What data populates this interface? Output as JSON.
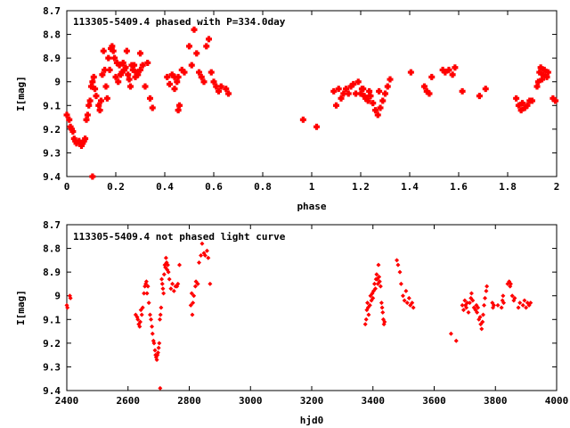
{
  "chart_data": [
    {
      "type": "scatter",
      "title": "113305-5409.4 phased with P=334.0day",
      "xlabel": "phase",
      "ylabel": "I[mag]",
      "xlim": [
        0,
        2
      ],
      "ylim": [
        9.4,
        8.7
      ],
      "y_inverted": true,
      "grid": false,
      "marker": "filled-plus",
      "color": "#ff0000",
      "xticks": [
        "0",
        "0.2",
        "0.4",
        "0.6",
        "0.8",
        "1",
        "1.2",
        "1.4",
        "1.6",
        "1.8",
        "2"
      ],
      "yticks": [
        "8.7",
        "8.8",
        "8.9",
        "9",
        "9.1",
        "9.2",
        "9.3",
        "9.4"
      ],
      "points": [
        [
          0.0,
          9.14
        ],
        [
          0.01,
          9.16
        ],
        [
          0.015,
          9.19
        ],
        [
          0.02,
          9.2
        ],
        [
          0.025,
          9.21
        ],
        [
          0.03,
          9.24
        ],
        [
          0.035,
          9.25
        ],
        [
          0.04,
          9.26
        ],
        [
          0.05,
          9.25
        ],
        [
          0.055,
          9.26
        ],
        [
          0.06,
          9.27
        ],
        [
          0.065,
          9.26
        ],
        [
          0.07,
          9.25
        ],
        [
          0.075,
          9.24
        ],
        [
          0.08,
          9.16
        ],
        [
          0.085,
          9.14
        ],
        [
          0.09,
          9.1
        ],
        [
          0.095,
          9.08
        ],
        [
          0.1,
          9.02
        ],
        [
          0.105,
          9.0
        ],
        [
          0.11,
          8.98
        ],
        [
          0.115,
          9.03
        ],
        [
          0.12,
          9.06
        ],
        [
          0.13,
          9.1
        ],
        [
          0.135,
          9.12
        ],
        [
          0.14,
          9.08
        ],
        [
          0.145,
          8.97
        ],
        [
          0.15,
          8.87
        ],
        [
          0.155,
          8.95
        ],
        [
          0.16,
          9.02
        ],
        [
          0.165,
          9.07
        ],
        [
          0.17,
          8.9
        ],
        [
          0.175,
          8.95
        ],
        [
          0.18,
          8.86
        ],
        [
          0.185,
          8.85
        ],
        [
          0.19,
          8.87
        ],
        [
          0.195,
          8.9
        ],
        [
          0.2,
          8.98
        ],
        [
          0.205,
          8.92
        ],
        [
          0.21,
          9.0
        ],
        [
          0.215,
          8.93
        ],
        [
          0.22,
          8.97
        ],
        [
          0.225,
          8.96
        ],
        [
          0.23,
          8.92
        ],
        [
          0.235,
          8.95
        ],
        [
          0.24,
          8.94
        ],
        [
          0.245,
          8.87
        ],
        [
          0.25,
          8.97
        ],
        [
          0.255,
          8.99
        ],
        [
          0.26,
          9.02
        ],
        [
          0.265,
          8.93
        ],
        [
          0.27,
          8.95
        ],
        [
          0.275,
          8.93
        ],
        [
          0.28,
          8.98
        ],
        [
          0.285,
          8.96
        ],
        [
          0.29,
          8.97
        ],
        [
          0.3,
          8.95
        ],
        [
          0.31,
          8.93
        ],
        [
          0.32,
          9.02
        ],
        [
          0.33,
          8.92
        ],
        [
          0.34,
          9.07
        ],
        [
          0.35,
          9.11
        ],
        [
          0.105,
          9.4
        ],
        [
          0.3,
          8.88
        ],
        [
          0.41,
          8.98
        ],
        [
          0.42,
          9.01
        ],
        [
          0.43,
          8.97
        ],
        [
          0.44,
          9.03
        ],
        [
          0.45,
          9.0
        ],
        [
          0.455,
          8.98
        ],
        [
          0.46,
          9.1
        ],
        [
          0.47,
          8.95
        ],
        [
          0.48,
          8.96
        ],
        [
          0.5,
          8.85
        ],
        [
          0.51,
          8.93
        ],
        [
          0.52,
          8.78
        ],
        [
          0.53,
          8.88
        ],
        [
          0.54,
          8.96
        ],
        [
          0.55,
          8.98
        ],
        [
          0.56,
          9.0
        ],
        [
          0.57,
          8.85
        ],
        [
          0.58,
          8.82
        ],
        [
          0.59,
          8.96
        ],
        [
          0.6,
          9.0
        ],
        [
          0.61,
          9.02
        ],
        [
          0.62,
          9.04
        ],
        [
          0.63,
          9.02
        ],
        [
          0.65,
          9.03
        ],
        [
          0.66,
          9.05
        ],
        [
          0.44,
          8.98
        ],
        [
          0.455,
          9.12
        ],
        [
          0.965,
          9.16
        ],
        [
          1.02,
          9.19
        ],
        [
          1.09,
          9.04
        ],
        [
          1.1,
          9.1
        ],
        [
          1.11,
          9.03
        ],
        [
          1.12,
          9.07
        ],
        [
          1.13,
          9.05
        ],
        [
          1.14,
          9.03
        ],
        [
          1.15,
          9.05
        ],
        [
          1.16,
          9.02
        ],
        [
          1.17,
          9.01
        ],
        [
          1.18,
          9.05
        ],
        [
          1.19,
          9.0
        ],
        [
          1.2,
          9.05
        ],
        [
          1.21,
          9.03
        ],
        [
          1.22,
          9.07
        ],
        [
          1.23,
          9.08
        ],
        [
          1.24,
          9.06
        ],
        [
          1.25,
          9.09
        ],
        [
          1.26,
          9.12
        ],
        [
          1.27,
          9.14
        ],
        [
          1.28,
          9.11
        ],
        [
          1.29,
          9.08
        ],
        [
          1.3,
          9.05
        ],
        [
          1.31,
          9.02
        ],
        [
          1.32,
          8.99
        ],
        [
          1.405,
          8.96
        ],
        [
          1.46,
          9.02
        ],
        [
          1.47,
          9.04
        ],
        [
          1.48,
          9.05
        ],
        [
          1.49,
          8.98
        ],
        [
          1.535,
          8.95
        ],
        [
          1.545,
          8.96
        ],
        [
          1.56,
          8.95
        ],
        [
          1.575,
          8.97
        ],
        [
          1.585,
          8.94
        ],
        [
          1.615,
          9.04
        ],
        [
          1.685,
          9.06
        ],
        [
          1.71,
          9.03
        ],
        [
          1.835,
          9.07
        ],
        [
          1.845,
          9.1
        ],
        [
          1.855,
          9.12
        ],
        [
          1.86,
          9.09
        ],
        [
          1.87,
          9.11
        ],
        [
          1.88,
          9.1
        ],
        [
          1.89,
          9.08
        ],
        [
          1.9,
          9.08
        ],
        [
          1.92,
          9.02
        ],
        [
          1.925,
          9.0
        ],
        [
          1.93,
          8.96
        ],
        [
          1.935,
          8.94
        ],
        [
          1.94,
          8.99
        ],
        [
          1.945,
          8.97
        ],
        [
          1.95,
          8.95
        ],
        [
          1.96,
          8.98
        ],
        [
          1.965,
          8.96
        ],
        [
          1.985,
          9.07
        ],
        [
          1.995,
          9.08
        ],
        [
          1.205,
          9.03
        ],
        [
          1.215,
          9.06
        ],
        [
          1.275,
          9.04
        ],
        [
          1.235,
          9.04
        ]
      ]
    },
    {
      "type": "scatter",
      "title": "113305-5409.4 not phased light curve",
      "xlabel": "hjd0",
      "ylabel": "I[mag]",
      "xlim": [
        2400,
        4000
      ],
      "ylim": [
        9.4,
        8.7
      ],
      "y_inverted": true,
      "grid": false,
      "marker": "filled-diamond",
      "color": "#ff0000",
      "xticks": [
        "2400",
        "2600",
        "2800",
        "3000",
        "3200",
        "3400",
        "3600",
        "3800",
        "4000"
      ],
      "yticks": [
        "8.7",
        "8.8",
        "8.9",
        "9",
        "9.1",
        "9.2",
        "9.3",
        "9.4"
      ],
      "points": [
        [
          2400,
          9.04
        ],
        [
          2402,
          9.05
        ],
        [
          2410,
          9.0
        ],
        [
          2412,
          9.01
        ],
        [
          2625,
          9.08
        ],
        [
          2630,
          9.09
        ],
        [
          2632,
          9.1
        ],
        [
          2635,
          9.12
        ],
        [
          2638,
          9.13
        ],
        [
          2640,
          9.11
        ],
        [
          2642,
          9.06
        ],
        [
          2645,
          9.08
        ],
        [
          2648,
          9.05
        ],
        [
          2652,
          8.99
        ],
        [
          2655,
          8.96
        ],
        [
          2658,
          8.95
        ],
        [
          2660,
          8.94
        ],
        [
          2662,
          8.99
        ],
        [
          2665,
          8.96
        ],
        [
          2668,
          9.03
        ],
        [
          2672,
          9.08
        ],
        [
          2675,
          9.1
        ],
        [
          2678,
          9.13
        ],
        [
          2680,
          9.16
        ],
        [
          2683,
          9.19
        ],
        [
          2685,
          9.2
        ],
        [
          2688,
          9.23
        ],
        [
          2690,
          9.25
        ],
        [
          2692,
          9.26
        ],
        [
          2694,
          9.27
        ],
        [
          2696,
          9.25
        ],
        [
          2698,
          9.24
        ],
        [
          2700,
          9.22
        ],
        [
          2702,
          9.2
        ],
        [
          2704,
          9.1
        ],
        [
          2706,
          9.08
        ],
        [
          2708,
          9.05
        ],
        [
          2710,
          8.93
        ],
        [
          2712,
          8.95
        ],
        [
          2714,
          8.97
        ],
        [
          2716,
          8.99
        ],
        [
          2718,
          8.91
        ],
        [
          2720,
          8.87
        ],
        [
          2722,
          8.88
        ],
        [
          2724,
          8.84
        ],
        [
          2726,
          8.86
        ],
        [
          2728,
          8.89
        ],
        [
          2730,
          8.87
        ],
        [
          2732,
          8.9
        ],
        [
          2735,
          8.93
        ],
        [
          2740,
          8.97
        ],
        [
          2745,
          8.95
        ],
        [
          2750,
          8.98
        ],
        [
          2755,
          8.96
        ],
        [
          2760,
          8.96
        ],
        [
          2763,
          8.95
        ],
        [
          2768,
          8.87
        ],
        [
          2705,
          9.39
        ],
        [
          2805,
          9.04
        ],
        [
          2808,
          8.99
        ],
        [
          2810,
          9.08
        ],
        [
          2812,
          9.03
        ],
        [
          2815,
          9.0
        ],
        [
          2820,
          8.96
        ],
        [
          2822,
          8.94
        ],
        [
          2828,
          8.95
        ],
        [
          2832,
          8.86
        ],
        [
          2838,
          8.83
        ],
        [
          2842,
          8.78
        ],
        [
          2848,
          8.82
        ],
        [
          2852,
          8.83
        ],
        [
          2858,
          8.81
        ],
        [
          2862,
          8.84
        ],
        [
          2868,
          8.95
        ],
        [
          3375,
          9.12
        ],
        [
          3378,
          9.1
        ],
        [
          3380,
          9.06
        ],
        [
          3382,
          9.03
        ],
        [
          3384,
          9.05
        ],
        [
          3386,
          9.08
        ],
        [
          3390,
          9.04
        ],
        [
          3392,
          9.0
        ],
        [
          3395,
          9.02
        ],
        [
          3398,
          8.99
        ],
        [
          3400,
          9.01
        ],
        [
          3402,
          8.98
        ],
        [
          3405,
          8.95
        ],
        [
          3408,
          8.97
        ],
        [
          3410,
          8.93
        ],
        [
          3412,
          8.91
        ],
        [
          3414,
          8.93
        ],
        [
          3416,
          8.95
        ],
        [
          3418,
          8.87
        ],
        [
          3420,
          8.92
        ],
        [
          3422,
          8.94
        ],
        [
          3425,
          8.96
        ],
        [
          3428,
          9.03
        ],
        [
          3430,
          9.05
        ],
        [
          3432,
          9.07
        ],
        [
          3434,
          9.1
        ],
        [
          3436,
          9.12
        ],
        [
          3438,
          9.11
        ],
        [
          3478,
          8.85
        ],
        [
          3482,
          8.87
        ],
        [
          3488,
          8.9
        ],
        [
          3492,
          8.95
        ],
        [
          3498,
          9.0
        ],
        [
          3503,
          9.02
        ],
        [
          3508,
          8.98
        ],
        [
          3512,
          9.03
        ],
        [
          3518,
          9.01
        ],
        [
          3522,
          9.04
        ],
        [
          3528,
          9.03
        ],
        [
          3532,
          9.05
        ],
        [
          3655,
          9.16
        ],
        [
          3672,
          9.19
        ],
        [
          3692,
          9.04
        ],
        [
          3696,
          9.06
        ],
        [
          3700,
          9.02
        ],
        [
          3702,
          9.04
        ],
        [
          3705,
          9.05
        ],
        [
          3708,
          9.03
        ],
        [
          3712,
          9.07
        ],
        [
          3716,
          9.03
        ],
        [
          3720,
          9.01
        ],
        [
          3722,
          8.99
        ],
        [
          3726,
          9.02
        ],
        [
          3730,
          9.05
        ],
        [
          3735,
          9.06
        ],
        [
          3738,
          9.04
        ],
        [
          3740,
          9.07
        ],
        [
          3743,
          9.05
        ],
        [
          3746,
          9.1
        ],
        [
          3750,
          9.09
        ],
        [
          3752,
          9.12
        ],
        [
          3755,
          9.14
        ],
        [
          3758,
          9.11
        ],
        [
          3760,
          9.08
        ],
        [
          3763,
          9.04
        ],
        [
          3766,
          9.01
        ],
        [
          3770,
          8.98
        ],
        [
          3772,
          8.96
        ],
        [
          3790,
          9.03
        ],
        [
          3792,
          9.05
        ],
        [
          3795,
          9.04
        ],
        [
          3808,
          9.04
        ],
        [
          3820,
          9.05
        ],
        [
          3823,
          9.02
        ],
        [
          3825,
          9.0
        ],
        [
          3827,
          9.03
        ],
        [
          3840,
          8.95
        ],
        [
          3845,
          8.94
        ],
        [
          3848,
          8.96
        ],
        [
          3850,
          8.95
        ],
        [
          3855,
          9.0
        ],
        [
          3860,
          9.02
        ],
        [
          3863,
          9.01
        ],
        [
          3875,
          9.05
        ],
        [
          3880,
          9.03
        ],
        [
          3890,
          9.04
        ],
        [
          3895,
          9.02
        ],
        [
          3900,
          9.05
        ],
        [
          3905,
          9.03
        ],
        [
          3910,
          9.04
        ],
        [
          3915,
          9.03
        ]
      ]
    }
  ]
}
